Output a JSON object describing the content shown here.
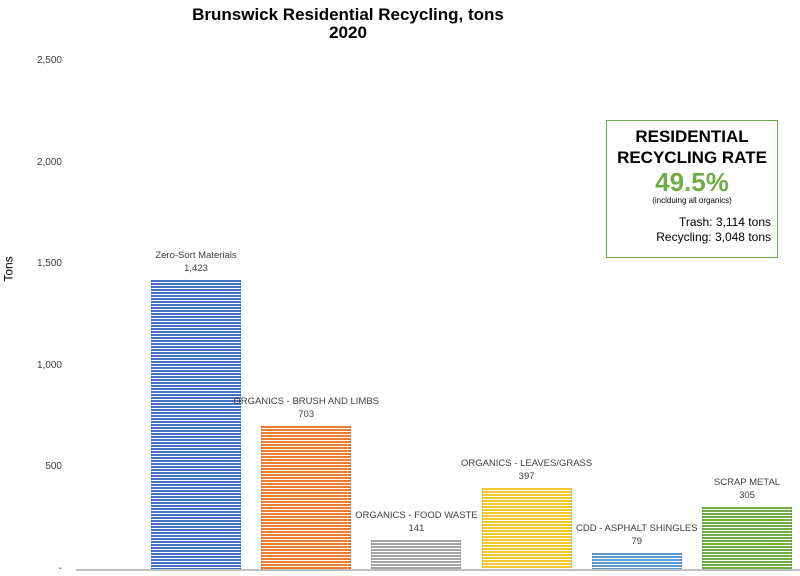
{
  "chart_data": {
    "type": "bar",
    "title": "Brunswick Residential Recycling, tons",
    "subtitle": "2020",
    "xlabel": "",
    "ylabel": "Tons",
    "ylim": [
      0,
      2500
    ],
    "yticks": [
      "-",
      "500",
      "1,000",
      "1,500",
      "2,000",
      "2,500"
    ],
    "grid": false,
    "categories": [
      "Zero-Sort Materials",
      "ORGANICS - BRUSH AND LIMBS",
      "ORGANICS - FOOD WASTE",
      "ORGANICS - LEAVES/GRASS",
      "CDD - ASPHALT SHINGLES",
      "SCRAP METAL"
    ],
    "values": [
      1423,
      703,
      141,
      397,
      79,
      305
    ],
    "value_labels": [
      "1,423",
      "703",
      "141",
      "397",
      "79",
      "305"
    ],
    "colors": [
      "#4472c4",
      "#ed7d31",
      "#a5a5a5",
      "#f2c830",
      "#5b9bd5",
      "#70ad47"
    ]
  },
  "callout": {
    "heading_line1": "RESIDENTIAL",
    "heading_line2": "RECYCLING RATE",
    "rate": "49.5%",
    "note": "(inclduing all organics)",
    "trash": "Trash:  3,114 tons",
    "recycling": "Recycling:  3,048 tons",
    "border_color": "#70ad47",
    "rate_color": "#70ad47"
  }
}
